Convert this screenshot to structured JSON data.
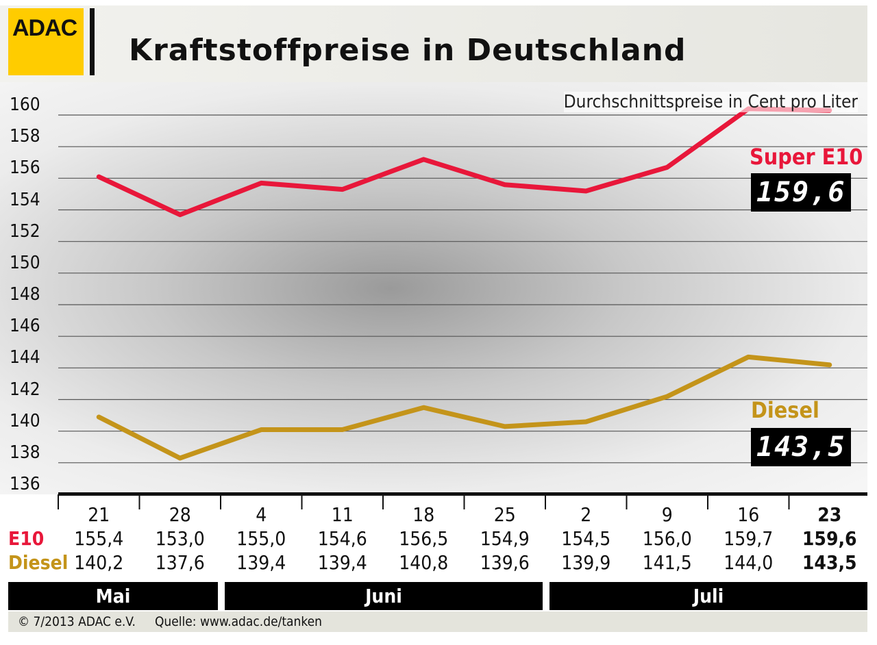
{
  "header": {
    "logo": "ADAC",
    "title": "Kraftstoffpreise in Deutschland"
  },
  "chart_data": {
    "type": "line",
    "title": "Kraftstoffpreise in Deutschland",
    "subtitle": "Durchschnittspreise in Cent pro Liter",
    "ylim": [
      136,
      160
    ],
    "yticks": [
      "160",
      "158",
      "156",
      "154",
      "152",
      "150",
      "148",
      "146",
      "144",
      "142",
      "140",
      "138",
      "136"
    ],
    "categories": [
      "21",
      "28",
      "4",
      "11",
      "18",
      "25",
      "2",
      "9",
      "16",
      "23"
    ],
    "months": [
      {
        "label": "Mai",
        "span": 2
      },
      {
        "label": "Juni",
        "span": 4
      },
      {
        "label": "Juli",
        "span": 4
      }
    ],
    "series": [
      {
        "name": "Super E10",
        "row_label": "E10",
        "color": "#e8173a",
        "display": "159,6",
        "values": [
          155.4,
          153.0,
          155.0,
          154.6,
          156.5,
          154.9,
          154.5,
          156.0,
          159.7,
          159.6
        ],
        "labels": [
          "155,4",
          "153,0",
          "155,0",
          "154,6",
          "156,5",
          "154,9",
          "154,5",
          "156,0",
          "159,7",
          "159,6"
        ]
      },
      {
        "name": "Diesel",
        "row_label": "Diesel",
        "color": "#c4941a",
        "display": "143,5",
        "values": [
          140.2,
          137.6,
          139.4,
          139.4,
          140.8,
          139.6,
          139.9,
          141.5,
          144.0,
          143.5
        ],
        "labels": [
          "140,2",
          "137,6",
          "139,4",
          "139,4",
          "140,8",
          "139,6",
          "139,9",
          "141,5",
          "144,0",
          "143,5"
        ]
      }
    ],
    "grid": true
  },
  "footer": {
    "copyright": "© 7/2013  ADAC e.V.",
    "source": "Quelle: www.adac.de/tanken"
  }
}
